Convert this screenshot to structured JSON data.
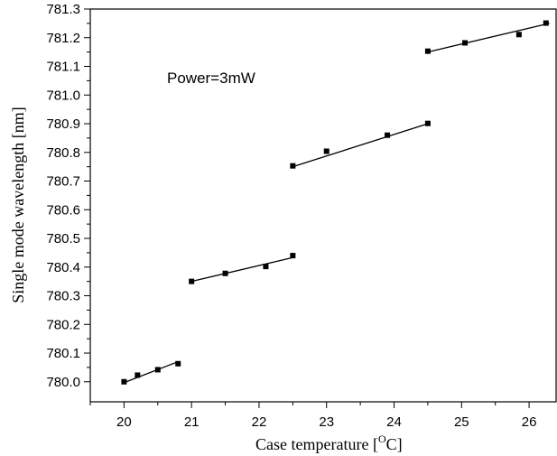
{
  "chart_data": {
    "type": "scatter",
    "title": "",
    "annotation": "Power=3mW",
    "xlabel_text": "Case temperature [",
    "xlabel_super": "O",
    "xlabel_tail": "C]",
    "ylabel": "Single mode wavelength [nm]",
    "xlim": [
      19.5,
      26.4
    ],
    "ylim": [
      779.93,
      781.3
    ],
    "x_ticks": [
      20,
      21,
      22,
      23,
      24,
      25,
      26
    ],
    "y_ticks": [
      780.0,
      780.1,
      780.2,
      780.3,
      780.4,
      780.5,
      780.6,
      780.7,
      780.8,
      780.9,
      781.0,
      781.1,
      781.2,
      781.3
    ],
    "x_tick_labels": [
      "20",
      "21",
      "22",
      "23",
      "24",
      "25",
      "26"
    ],
    "y_tick_labels": [
      "780.0",
      "780.1",
      "780.2",
      "780.3",
      "780.4",
      "780.5",
      "780.6",
      "780.7",
      "780.8",
      "780.9",
      "781.0",
      "781.1",
      "781.2",
      "781.3"
    ],
    "grid": false,
    "points": [
      {
        "x": 20.0,
        "y": 780.0
      },
      {
        "x": 20.2,
        "y": 780.023
      },
      {
        "x": 20.5,
        "y": 780.042
      },
      {
        "x": 20.8,
        "y": 780.063
      },
      {
        "x": 21.0,
        "y": 780.35
      },
      {
        "x": 21.5,
        "y": 780.378
      },
      {
        "x": 22.1,
        "y": 780.402
      },
      {
        "x": 22.5,
        "y": 780.44
      },
      {
        "x": 22.5,
        "y": 780.753
      },
      {
        "x": 23.0,
        "y": 780.804
      },
      {
        "x": 23.9,
        "y": 780.86
      },
      {
        "x": 24.5,
        "y": 780.901
      },
      {
        "x": 24.5,
        "y": 781.153
      },
      {
        "x": 25.05,
        "y": 781.182
      },
      {
        "x": 25.85,
        "y": 781.211
      },
      {
        "x": 26.25,
        "y": 781.251
      }
    ],
    "fit_lines": [
      {
        "x": [
          20.0,
          20.8
        ],
        "y": [
          779.997,
          780.07
        ]
      },
      {
        "x": [
          21.0,
          22.5
        ],
        "y": [
          780.35,
          780.433
        ]
      },
      {
        "x": [
          22.5,
          24.5
        ],
        "y": [
          780.75,
          780.9
        ]
      },
      {
        "x": [
          24.5,
          26.3
        ],
        "y": [
          781.15,
          781.25
        ]
      }
    ]
  }
}
